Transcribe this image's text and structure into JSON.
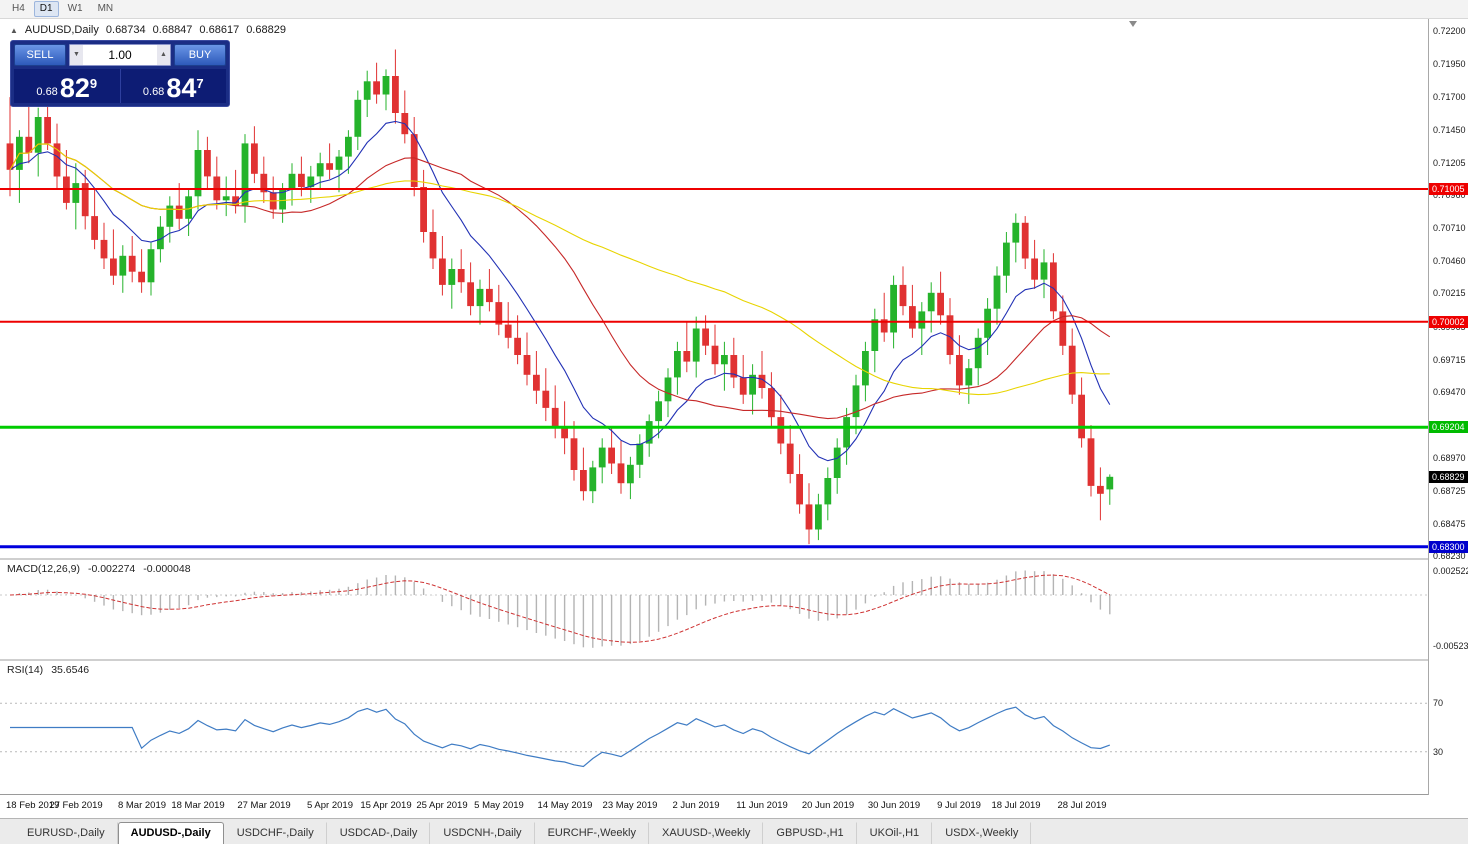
{
  "toolbar": {
    "timeframes": [
      "H4",
      "D1",
      "W1",
      "MN"
    ],
    "active_timeframe": "D1"
  },
  "chart_header": {
    "expand_icon": "▲",
    "symbol": "AUDUSD,Daily",
    "open": "0.68734",
    "high": "0.68847",
    "low": "0.68617",
    "close": "0.68829"
  },
  "one_click": {
    "sell_label": "SELL",
    "buy_label": "BUY",
    "volume": "1.00",
    "volume_down_icon": "▼",
    "volume_up_icon": "▲",
    "sell_price_prefix": "0.68",
    "sell_price_big": "82",
    "sell_price_sup": "9",
    "buy_price_prefix": "0.68",
    "buy_price_big": "84",
    "buy_price_sup": "7"
  },
  "price_scale": {
    "ticks": [
      {
        "text": "0.72200",
        "value": 0.722
      },
      {
        "text": "0.71950",
        "value": 0.7195
      },
      {
        "text": "0.71700",
        "value": 0.717
      },
      {
        "text": "0.71450",
        "value": 0.7145
      },
      {
        "text": "0.71205",
        "value": 0.71205
      },
      {
        "text": "0.70960",
        "value": 0.7096
      },
      {
        "text": "0.70710",
        "value": 0.7071
      },
      {
        "text": "0.70460",
        "value": 0.7046
      },
      {
        "text": "0.70215",
        "value": 0.70215
      },
      {
        "text": "0.69965",
        "value": 0.69965
      },
      {
        "text": "0.69715",
        "value": 0.69715
      },
      {
        "text": "0.69470",
        "value": 0.6947
      },
      {
        "text": "0.68970",
        "value": 0.6897
      },
      {
        "text": "0.68725",
        "value": 0.68725
      },
      {
        "text": "0.68475",
        "value": 0.68475
      },
      {
        "text": "0.68230",
        "value": 0.6823
      }
    ],
    "line_labels": [
      {
        "text": "0.71005",
        "value": 0.71005,
        "bg": "#ee0000",
        "name": "resistance-price-label-1"
      },
      {
        "text": "0.70002",
        "value": 0.70002,
        "bg": "#ee0000",
        "name": "resistance-price-label-2"
      },
      {
        "text": "0.69204",
        "value": 0.69204,
        "bg": "#00bb00",
        "name": "support-price-label"
      },
      {
        "text": "0.68829",
        "value": 0.68829,
        "bg": "#000000",
        "name": "current-price-label"
      },
      {
        "text": "0.68300",
        "value": 0.683,
        "bg": "#0000cc",
        "name": "lower-support-price-label"
      }
    ]
  },
  "macd": {
    "label": "MACD(12,26,9)",
    "macd_value": "-0.002274",
    "signal_value": "-0.000048",
    "scale_labels": [
      {
        "text": "0.002522",
        "value": 0.002522
      },
      {
        "text": "-0.005234",
        "value": -0.005234
      }
    ],
    "histogram_color": "#b4b4b4",
    "signal_color": "#cf3434"
  },
  "rsi": {
    "label": "RSI(14)",
    "value": "35.6546",
    "levels": [
      {
        "text": "70",
        "value": 70
      },
      {
        "text": "30",
        "value": 30
      }
    ],
    "line_color": "#3f7cc4"
  },
  "tabs": {
    "items": [
      "EURUSD-,Daily",
      "AUDUSD-,Daily",
      "USDCHF-,Daily",
      "USDCAD-,Daily",
      "USDCNH-,Daily",
      "EURCHF-,Weekly",
      "XAUUSD-,Weekly",
      "GBPUSD-,H1",
      "UKOil-,H1",
      "USDX-,Weekly"
    ],
    "active_index": 1
  },
  "chart_data": {
    "type": "candlestick",
    "symbol": "AUDUSD",
    "timeframe": "Daily",
    "price_range": [
      0.6823,
      0.722
    ],
    "up_color": "#25b32b",
    "down_color": "#e03232",
    "time_labels": [
      {
        "text": "18 Feb 2019",
        "index": 0
      },
      {
        "text": "27 Feb 2019",
        "index": 7
      },
      {
        "text": "8 Mar 2019",
        "index": 14
      },
      {
        "text": "18 Mar 2019",
        "index": 20
      },
      {
        "text": "27 Mar 2019",
        "index": 27
      },
      {
        "text": "5 Apr 2019",
        "index": 34
      },
      {
        "text": "15 Apr 2019",
        "index": 40
      },
      {
        "text": "25 Apr 2019",
        "index": 46
      },
      {
        "text": "5 May 2019",
        "index": 52
      },
      {
        "text": "14 May 2019",
        "index": 59
      },
      {
        "text": "23 May 2019",
        "index": 66
      },
      {
        "text": "2 Jun 2019",
        "index": 73
      },
      {
        "text": "11 Jun 2019",
        "index": 80
      },
      {
        "text": "20 Jun 2019",
        "index": 87
      },
      {
        "text": "30 Jun 2019",
        "index": 94
      },
      {
        "text": "9 Jul 2019",
        "index": 101
      },
      {
        "text": "18 Jul 2019",
        "index": 107
      },
      {
        "text": "28 Jul 2019",
        "index": 114
      }
    ],
    "hlines": [
      {
        "price": 0.71005,
        "color": "#ee0000",
        "width": 2
      },
      {
        "price": 0.70002,
        "color": "#ee0000",
        "width": 2
      },
      {
        "price": 0.69204,
        "color": "#00cc00",
        "width": 3
      },
      {
        "price": 0.683,
        "color": "#0000dd",
        "width": 3
      }
    ],
    "moving_averages": [
      {
        "name": "ma-fast-line",
        "type": "ema",
        "period": 10,
        "color": "#2231b5"
      },
      {
        "name": "ma-mid-line",
        "type": "sma",
        "period": 24,
        "color": "#c62828"
      },
      {
        "name": "ma-slow-line",
        "type": "sma",
        "period": 52,
        "color": "#e8d400"
      }
    ],
    "indicators": {
      "macd": {
        "fast": 12,
        "slow": 26,
        "signal": 9
      },
      "rsi": {
        "period": 14
      }
    },
    "candles": [
      [
        0.7135,
        0.717,
        0.7095,
        0.7115
      ],
      [
        0.7115,
        0.7145,
        0.709,
        0.714
      ],
      [
        0.714,
        0.7165,
        0.712,
        0.7128
      ],
      [
        0.7128,
        0.7162,
        0.711,
        0.7155
      ],
      [
        0.7155,
        0.7168,
        0.713,
        0.7135
      ],
      [
        0.7135,
        0.715,
        0.71,
        0.711
      ],
      [
        0.711,
        0.713,
        0.7085,
        0.709
      ],
      [
        0.709,
        0.712,
        0.707,
        0.7105
      ],
      [
        0.7105,
        0.7115,
        0.707,
        0.708
      ],
      [
        0.708,
        0.71,
        0.7055,
        0.7062
      ],
      [
        0.7062,
        0.7075,
        0.704,
        0.7048
      ],
      [
        0.7048,
        0.707,
        0.7028,
        0.7035
      ],
      [
        0.7035,
        0.7058,
        0.7022,
        0.705
      ],
      [
        0.705,
        0.7065,
        0.703,
        0.7038
      ],
      [
        0.7038,
        0.7055,
        0.7022,
        0.703
      ],
      [
        0.703,
        0.706,
        0.702,
        0.7055
      ],
      [
        0.7055,
        0.708,
        0.7045,
        0.7072
      ],
      [
        0.7072,
        0.7095,
        0.706,
        0.7088
      ],
      [
        0.7088,
        0.7105,
        0.707,
        0.7078
      ],
      [
        0.7078,
        0.71,
        0.7065,
        0.7095
      ],
      [
        0.7095,
        0.7145,
        0.7085,
        0.713
      ],
      [
        0.713,
        0.714,
        0.71,
        0.711
      ],
      [
        0.711,
        0.7125,
        0.7085,
        0.7092
      ],
      [
        0.7092,
        0.711,
        0.708,
        0.7095
      ],
      [
        0.7095,
        0.7115,
        0.7082,
        0.7088
      ],
      [
        0.7088,
        0.7142,
        0.7075,
        0.7135
      ],
      [
        0.7135,
        0.7148,
        0.7105,
        0.7112
      ],
      [
        0.7112,
        0.7125,
        0.709,
        0.7098
      ],
      [
        0.7098,
        0.711,
        0.7078,
        0.7085
      ],
      [
        0.7085,
        0.7105,
        0.7075,
        0.71
      ],
      [
        0.71,
        0.712,
        0.7088,
        0.7112
      ],
      [
        0.7112,
        0.7125,
        0.7095,
        0.7102
      ],
      [
        0.7102,
        0.7118,
        0.709,
        0.711
      ],
      [
        0.711,
        0.7128,
        0.71,
        0.712
      ],
      [
        0.712,
        0.7135,
        0.7108,
        0.7115
      ],
      [
        0.7115,
        0.713,
        0.7098,
        0.7125
      ],
      [
        0.7125,
        0.7145,
        0.7112,
        0.714
      ],
      [
        0.714,
        0.7175,
        0.713,
        0.7168
      ],
      [
        0.7168,
        0.719,
        0.7155,
        0.7182
      ],
      [
        0.7182,
        0.7196,
        0.7165,
        0.7172
      ],
      [
        0.7172,
        0.7191,
        0.716,
        0.7186
      ],
      [
        0.7186,
        0.7206,
        0.715,
        0.7158
      ],
      [
        0.7158,
        0.7175,
        0.7135,
        0.7142
      ],
      [
        0.7142,
        0.7155,
        0.7095,
        0.7102
      ],
      [
        0.7102,
        0.7115,
        0.706,
        0.7068
      ],
      [
        0.7068,
        0.7085,
        0.704,
        0.7048
      ],
      [
        0.7048,
        0.7065,
        0.702,
        0.7028
      ],
      [
        0.7028,
        0.7048,
        0.701,
        0.704
      ],
      [
        0.704,
        0.7055,
        0.7022,
        0.703
      ],
      [
        0.703,
        0.7045,
        0.7005,
        0.7012
      ],
      [
        0.7012,
        0.7032,
        0.6998,
        0.7025
      ],
      [
        0.7025,
        0.704,
        0.7008,
        0.7015
      ],
      [
        0.7015,
        0.7028,
        0.699,
        0.6998
      ],
      [
        0.6998,
        0.7015,
        0.698,
        0.6988
      ],
      [
        0.6988,
        0.7005,
        0.6968,
        0.6975
      ],
      [
        0.6975,
        0.6992,
        0.6952,
        0.696
      ],
      [
        0.696,
        0.6978,
        0.6938,
        0.6948
      ],
      [
        0.6948,
        0.6965,
        0.6925,
        0.6935
      ],
      [
        0.6935,
        0.6952,
        0.6912,
        0.692
      ],
      [
        0.692,
        0.694,
        0.69,
        0.6912
      ],
      [
        0.6912,
        0.6925,
        0.688,
        0.6888
      ],
      [
        0.6888,
        0.6905,
        0.6865,
        0.6872
      ],
      [
        0.6872,
        0.6895,
        0.6863,
        0.689
      ],
      [
        0.689,
        0.6912,
        0.6878,
        0.6905
      ],
      [
        0.6905,
        0.692,
        0.6885,
        0.6893
      ],
      [
        0.6893,
        0.691,
        0.687,
        0.6878
      ],
      [
        0.6878,
        0.6898,
        0.6866,
        0.6892
      ],
      [
        0.6892,
        0.6915,
        0.6882,
        0.6908
      ],
      [
        0.6908,
        0.693,
        0.6898,
        0.6925
      ],
      [
        0.6925,
        0.6948,
        0.6912,
        0.694
      ],
      [
        0.694,
        0.6965,
        0.6928,
        0.6958
      ],
      [
        0.6958,
        0.6985,
        0.6945,
        0.6978
      ],
      [
        0.6978,
        0.7,
        0.6962,
        0.697
      ],
      [
        0.697,
        0.7004,
        0.6958,
        0.6995
      ],
      [
        0.6995,
        0.7005,
        0.6975,
        0.6982
      ],
      [
        0.6982,
        0.6998,
        0.696,
        0.6968
      ],
      [
        0.6968,
        0.6985,
        0.6948,
        0.6975
      ],
      [
        0.6975,
        0.6988,
        0.695,
        0.6958
      ],
      [
        0.6958,
        0.6975,
        0.6938,
        0.6945
      ],
      [
        0.6945,
        0.6968,
        0.693,
        0.696
      ],
      [
        0.696,
        0.6978,
        0.6942,
        0.695
      ],
      [
        0.695,
        0.6962,
        0.692,
        0.6928
      ],
      [
        0.6928,
        0.6945,
        0.69,
        0.6908
      ],
      [
        0.6908,
        0.6922,
        0.6878,
        0.6885
      ],
      [
        0.6885,
        0.69,
        0.6855,
        0.6862
      ],
      [
        0.6862,
        0.6878,
        0.6832,
        0.6843
      ],
      [
        0.6843,
        0.687,
        0.6835,
        0.6862
      ],
      [
        0.6862,
        0.689,
        0.685,
        0.6882
      ],
      [
        0.6882,
        0.6912,
        0.687,
        0.6905
      ],
      [
        0.6905,
        0.6935,
        0.6892,
        0.6928
      ],
      [
        0.6928,
        0.696,
        0.6915,
        0.6952
      ],
      [
        0.6952,
        0.6985,
        0.694,
        0.6978
      ],
      [
        0.6978,
        0.701,
        0.6962,
        0.7002
      ],
      [
        0.7002,
        0.7022,
        0.6985,
        0.6992
      ],
      [
        0.6992,
        0.7035,
        0.698,
        0.7028
      ],
      [
        0.7028,
        0.7042,
        0.7005,
        0.7012
      ],
      [
        0.7012,
        0.7028,
        0.6988,
        0.6995
      ],
      [
        0.6995,
        0.7015,
        0.6975,
        0.7008
      ],
      [
        0.7008,
        0.703,
        0.6992,
        0.7022
      ],
      [
        0.7022,
        0.7038,
        0.6998,
        0.7005
      ],
      [
        0.7005,
        0.7018,
        0.6968,
        0.6975
      ],
      [
        0.6975,
        0.699,
        0.6945,
        0.6952
      ],
      [
        0.6952,
        0.6972,
        0.6938,
        0.6965
      ],
      [
        0.6965,
        0.6995,
        0.6952,
        0.6988
      ],
      [
        0.6988,
        0.7018,
        0.6975,
        0.701
      ],
      [
        0.701,
        0.7042,
        0.6998,
        0.7035
      ],
      [
        0.7035,
        0.7068,
        0.7022,
        0.706
      ],
      [
        0.706,
        0.7082,
        0.7045,
        0.7075
      ],
      [
        0.7075,
        0.708,
        0.704,
        0.7048
      ],
      [
        0.7048,
        0.7062,
        0.7025,
        0.7032
      ],
      [
        0.7032,
        0.7055,
        0.7018,
        0.7045
      ],
      [
        0.7045,
        0.7052,
        0.7002,
        0.7008
      ],
      [
        0.7008,
        0.702,
        0.6975,
        0.6982
      ],
      [
        0.6982,
        0.6995,
        0.6938,
        0.6945
      ],
      [
        0.6945,
        0.6958,
        0.6905,
        0.6912
      ],
      [
        0.6912,
        0.6922,
        0.6868,
        0.6876
      ],
      [
        0.6876,
        0.689,
        0.685,
        0.687
      ],
      [
        0.68734,
        0.68847,
        0.68617,
        0.68829
      ]
    ]
  }
}
